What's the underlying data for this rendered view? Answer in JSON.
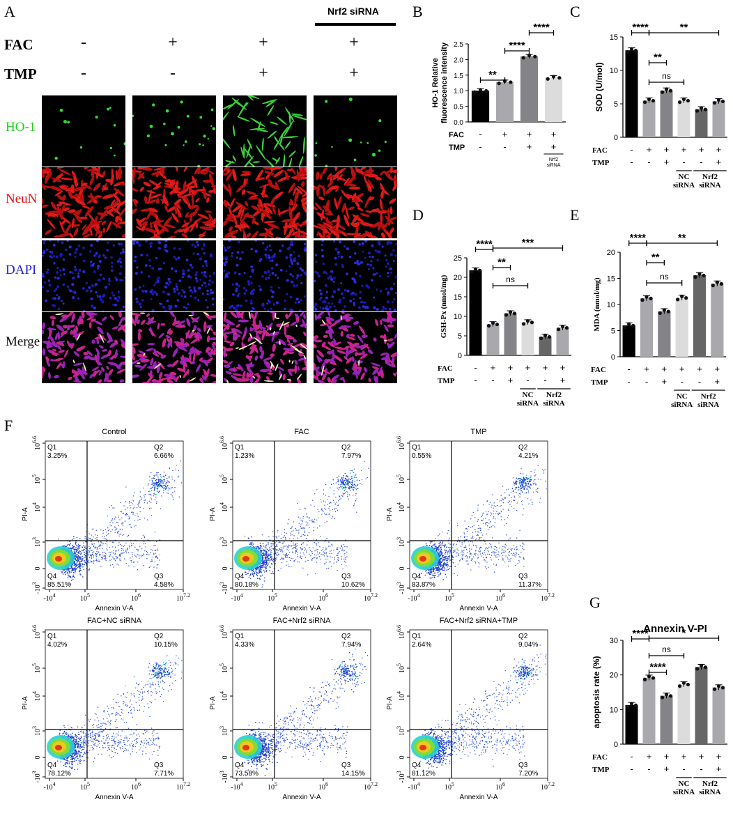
{
  "panel_labels": [
    "A",
    "B",
    "C",
    "D",
    "E",
    "F",
    "G"
  ],
  "panelA": {
    "header_label": "Nrf2 siRNA",
    "row_labels": [
      "FAC",
      "TMP"
    ],
    "fac_signs": [
      "-",
      "+",
      "+",
      "+"
    ],
    "tmp_signs": [
      "-",
      "-",
      "+",
      "+"
    ],
    "channels": [
      {
        "name": "HO-1",
        "color": "#22cc22"
      },
      {
        "name": "NeuN",
        "color": "#ee1111"
      },
      {
        "name": "DAPI",
        "color": "#2222dd"
      },
      {
        "name": "Merge",
        "color": "#111111"
      }
    ]
  },
  "colors": {
    "black_bar": "#000000",
    "gray_mid": "#a9a9ad",
    "gray_dark": "#848488",
    "gray_light": "#dcdcdc",
    "gray_darkest": "#666666"
  },
  "chart_data": [
    {
      "id": "B",
      "type": "bar",
      "ylabel": "HO-1 Relative fluorescence intensity",
      "ylim": [
        0,
        2.5
      ],
      "yticks": [
        0.0,
        0.5,
        1.0,
        1.5,
        2.0,
        2.5
      ],
      "values": [
        1.0,
        1.28,
        2.1,
        1.42
      ],
      "fac": [
        "-",
        "+",
        "+",
        "+"
      ],
      "tmp": [
        "-",
        "-",
        "+",
        "+"
      ],
      "group_label": "Nrf2 siRNA",
      "significance": [
        {
          "label": "**"
        },
        {
          "label": "****"
        },
        {
          "label": "****"
        }
      ]
    },
    {
      "id": "C",
      "type": "bar",
      "ylabel": "SOD (U/mol)",
      "ylim": [
        0,
        15
      ],
      "yticks": [
        0,
        5,
        10,
        15
      ],
      "values": [
        13.0,
        5.5,
        7.0,
        5.5,
        4.2,
        5.4
      ],
      "fac": [
        "-",
        "+",
        "+",
        "+",
        "+",
        "+"
      ],
      "tmp": [
        "-",
        "-",
        "+",
        "-",
        "-",
        "+"
      ],
      "groups": [
        "NC siRNA",
        "Nrf2 siRNA"
      ],
      "significance": [
        {
          "label": "****"
        },
        {
          "label": "**"
        },
        {
          "label": "ns"
        },
        {
          "label": "**"
        }
      ]
    },
    {
      "id": "D",
      "type": "bar",
      "ylabel": "GSH-Px (nmol/mg)",
      "ylim": [
        0,
        25
      ],
      "yticks": [
        0,
        5,
        10,
        15,
        20,
        25
      ],
      "values": [
        21.8,
        8.0,
        10.8,
        8.5,
        4.8,
        7.1
      ],
      "fac": [
        "-",
        "+",
        "+",
        "+",
        "+",
        "+"
      ],
      "tmp": [
        "-",
        "-",
        "+",
        "-",
        "-",
        "+"
      ],
      "groups": [
        "NC siRNA",
        "Nrf2 siRNA"
      ],
      "significance": [
        {
          "label": "****"
        },
        {
          "label": "**"
        },
        {
          "label": "ns"
        },
        {
          "label": "***"
        }
      ]
    },
    {
      "id": "E",
      "type": "bar",
      "ylabel": "MDA (nmol/mg)",
      "ylim": [
        0,
        20
      ],
      "yticks": [
        0,
        5,
        10,
        15,
        20
      ],
      "values": [
        6.0,
        11.2,
        8.7,
        11.3,
        15.6,
        14.0
      ],
      "fac": [
        "-",
        "+",
        "+",
        "+",
        "+",
        "+"
      ],
      "tmp": [
        "-",
        "-",
        "+",
        "-",
        "-",
        "+"
      ],
      "groups": [
        "NC siRNA",
        "Nrf2 siRNA"
      ],
      "significance": [
        {
          "label": "****"
        },
        {
          "label": "**"
        },
        {
          "label": "ns"
        },
        {
          "label": "**"
        }
      ]
    },
    {
      "id": "G",
      "type": "bar",
      "title": "Annexin V-PI",
      "ylabel": "apoptosis rate (%)",
      "ylim": [
        0,
        30
      ],
      "yticks": [
        0,
        10,
        20,
        30
      ],
      "values": [
        11.3,
        19.2,
        14.0,
        17.3,
        22.3,
        16.4
      ],
      "fac": [
        "-",
        "+",
        "+",
        "+",
        "+",
        "+"
      ],
      "tmp": [
        "-",
        "-",
        "+",
        "-",
        "-",
        "+"
      ],
      "groups": [
        "NC siRNA",
        "Nrf2 siRNA"
      ],
      "significance": [
        {
          "label": "****"
        },
        {
          "label": "****"
        },
        {
          "label": "ns"
        },
        {
          "label": "*"
        }
      ]
    }
  ],
  "flow_plots": [
    {
      "title": "Control",
      "q1": "3.25%",
      "q2": "6.66%",
      "q3": "4.58%",
      "q4": "85.51%"
    },
    {
      "title": "FAC",
      "q1": "1.23%",
      "q2": "7.97%",
      "q3": "10.62%",
      "q4": "80.18%"
    },
    {
      "title": "TMP",
      "q1": "0.55%",
      "q2": "4.21%",
      "q3": "11.37%",
      "q4": "83.87%"
    },
    {
      "title": "FAC+NC siRNA",
      "q1": "4.02%",
      "q2": "10.15%",
      "q3": "7.71%",
      "q4": "78.12%"
    },
    {
      "title": "FAC+Nrf2 siRNA",
      "q1": "4.33%",
      "q2": "7.94%",
      "q3": "14.15%",
      "q4": "73.58%"
    },
    {
      "title": "FAC+Nrf2 siRNA+TMP",
      "q1": "2.64%",
      "q2": "9.04%",
      "q3": "7.20%",
      "q4": "81.12%"
    }
  ],
  "flow_axes": {
    "xlabel": "Annexin V-A",
    "ylabel": "PI-A",
    "xticks": [
      "-10^4",
      "10^5",
      "10^6",
      "10^7.2"
    ],
    "yticks": [
      "-10^3",
      "0",
      "10^3",
      "10^4",
      "10^5",
      "10^6.6"
    ]
  },
  "quadrant_names": [
    "Q1",
    "Q2",
    "Q3",
    "Q4"
  ]
}
